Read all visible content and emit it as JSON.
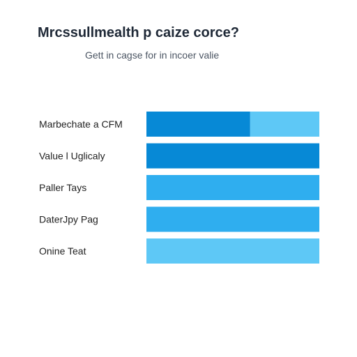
{
  "header": {
    "title": "Mrcssullmealth p caize corce?",
    "subtitle": "Gett in cagse for in incoer valie"
  },
  "colors": {
    "dark_blue": "#0789D6",
    "mid_blue": "#2FAEEF",
    "light_blue": "#5EC8F6",
    "background": "#FFFFFF",
    "text": "#222222"
  },
  "chart_data": {
    "type": "bar",
    "orientation": "horizontal",
    "stacked": true,
    "categories": [
      "Marbechate a CFM",
      "Value l Uglicaly",
      "Paller Tays",
      "DaterJpy Pag",
      "Onine Teat"
    ],
    "xlim": [
      0,
      100
    ],
    "grid": false,
    "legend": "none",
    "series": [
      {
        "color": "#0789D6",
        "values": [
          60,
          100,
          0,
          0,
          0
        ]
      },
      {
        "color": "#2FAEEF",
        "values": [
          0,
          0,
          100,
          100,
          0
        ]
      },
      {
        "color": "#5EC8F6",
        "values": [
          40,
          0,
          0,
          0,
          100
        ]
      }
    ]
  }
}
